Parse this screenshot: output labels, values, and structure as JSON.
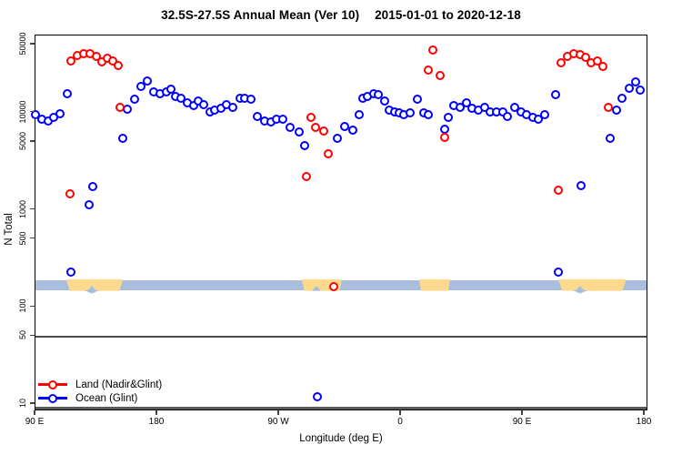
{
  "header": {
    "title_main": "32.5S-27.5S Annual Mean (Ver 10)",
    "title_dates": "2015-01-01 to 2020-12-18"
  },
  "chart_data": {
    "type": "scatter",
    "title": "32.5S-27.5S Annual Mean (Ver 10)   2015-01-01 to 2020-12-18",
    "xlabel": "Longitude (deg E)",
    "ylabel": "N Total",
    "x_axis": {
      "note": "longitude axis runs eastward from 90E through 180, 90W, 0, 90E to 180; stored lon = degrees east of start+90",
      "lon_start": 90,
      "lon_end": 540,
      "ticks": [
        {
          "lon": 90,
          "label": "90 E"
        },
        {
          "lon": 180,
          "label": "180"
        },
        {
          "lon": 270,
          "label": "90 W"
        },
        {
          "lon": 360,
          "label": "0"
        },
        {
          "lon": 450,
          "label": "90 E"
        },
        {
          "lon": 540,
          "label": "180"
        }
      ]
    },
    "y_axis": {
      "scale": "log",
      "ylim": [
        8.4,
        62000
      ],
      "ticks": [
        50000,
        10000,
        5000,
        1000,
        500,
        100,
        50,
        10
      ],
      "tick_labels": [
        "50000",
        "10000",
        "5000",
        "1000",
        "500",
        "100",
        "50",
        "10"
      ]
    },
    "reference_line_y": 50,
    "band": {
      "v_top": 190,
      "v_bottom": 148,
      "ocean_color": "#a9bedc",
      "land_color": "#fcd98c",
      "land_segments_lon": [
        [
          112.8,
          154.5
        ],
        [
          286.8,
          316.3
        ],
        [
          373.4,
          396.2
        ],
        [
          476.1,
          526.5
        ]
      ],
      "notches_lon": [
        131.6,
        297.5,
        492.3
      ],
      "bumps_lon": [
        131.6,
        492.3
      ]
    },
    "legend": {
      "position": "bottom-left"
    },
    "series": [
      {
        "name": "Land (Nadir&Glint)",
        "color": "#ff0000",
        "points": [
          [
            115.5,
            1460
          ],
          [
            116.2,
            34000
          ],
          [
            120.9,
            38800
          ],
          [
            125.6,
            40800
          ],
          [
            130.3,
            40300
          ],
          [
            135.0,
            37900
          ],
          [
            139.0,
            33400
          ],
          [
            143.0,
            36000
          ],
          [
            147.1,
            34200
          ],
          [
            151.1,
            30400
          ],
          [
            152.5,
            11400
          ],
          [
            290.1,
            2180
          ],
          [
            293.5,
            8900
          ],
          [
            296.8,
            7100
          ],
          [
            302.9,
            6500
          ],
          [
            306.2,
            3740
          ],
          [
            310.3,
            160
          ],
          [
            380.1,
            27400
          ],
          [
            383.5,
            44000
          ],
          [
            388.8,
            24100
          ],
          [
            392.2,
            5600
          ],
          [
            476.1,
            1590
          ],
          [
            478.2,
            32800
          ],
          [
            482.9,
            37900
          ],
          [
            487.6,
            40300
          ],
          [
            492.3,
            39700
          ],
          [
            496.3,
            37300
          ],
          [
            500.3,
            32400
          ],
          [
            505.0,
            34200
          ],
          [
            509.0,
            29900
          ],
          [
            513.1,
            11400
          ]
        ]
      },
      {
        "name": "Ocean (Glint)",
        "color": "#0000ff",
        "points": [
          [
            90.0,
            9500
          ],
          [
            94.7,
            8600
          ],
          [
            99.4,
            8200
          ],
          [
            103.4,
            9000
          ],
          [
            108.1,
            9700
          ],
          [
            113.5,
            15700
          ],
          [
            116.2,
            228
          ],
          [
            129.6,
            1130
          ],
          [
            132.3,
            1750
          ],
          [
            154.5,
            5400
          ],
          [
            157.8,
            10900
          ],
          [
            163.2,
            13800
          ],
          [
            167.9,
            18700
          ],
          [
            172.6,
            21000
          ],
          [
            177.3,
            16500
          ],
          [
            182.0,
            15700
          ],
          [
            186.7,
            16500
          ],
          [
            190.1,
            17600
          ],
          [
            193.4,
            14700
          ],
          [
            197.5,
            14000
          ],
          [
            202.2,
            12500
          ],
          [
            206.9,
            11700
          ],
          [
            210.2,
            13100
          ],
          [
            214.2,
            12200
          ],
          [
            219.0,
            10100
          ],
          [
            222.3,
            10600
          ],
          [
            227.0,
            11100
          ],
          [
            231.0,
            12200
          ],
          [
            235.7,
            11300
          ],
          [
            241.1,
            14000
          ],
          [
            244.5,
            14000
          ],
          [
            249.2,
            13700
          ],
          [
            253.9,
            9200
          ],
          [
            259.2,
            8200
          ],
          [
            263.9,
            8100
          ],
          [
            268.0,
            8600
          ],
          [
            272.7,
            8600
          ],
          [
            278.0,
            7000
          ],
          [
            284.7,
            6300
          ],
          [
            288.8,
            4600
          ],
          [
            298.2,
            12
          ],
          [
            313.0,
            5400
          ],
          [
            318.3,
            7200
          ],
          [
            324.4,
            6600
          ],
          [
            329.1,
            9500
          ],
          [
            331.8,
            14000
          ],
          [
            335.1,
            14600
          ],
          [
            339.8,
            15700
          ],
          [
            343.2,
            15300
          ],
          [
            347.9,
            13100
          ],
          [
            351.2,
            10600
          ],
          [
            355.3,
            10100
          ],
          [
            358.6,
            9900
          ],
          [
            362.0,
            9500
          ],
          [
            366.7,
            9900
          ],
          [
            372.0,
            13700
          ],
          [
            376.7,
            9900
          ],
          [
            380.1,
            9500
          ],
          [
            392.2,
            6700
          ],
          [
            394.9,
            9000
          ],
          [
            398.9,
            11700
          ],
          [
            403.6,
            11300
          ],
          [
            408.3,
            12500
          ],
          [
            412.3,
            11100
          ],
          [
            417.0,
            10600
          ],
          [
            421.7,
            11300
          ],
          [
            425.7,
            10100
          ],
          [
            430.4,
            10100
          ],
          [
            435.1,
            10100
          ],
          [
            438.5,
            9200
          ],
          [
            443.9,
            11300
          ],
          [
            448.6,
            10100
          ],
          [
            452.6,
            9500
          ],
          [
            457.3,
            9000
          ],
          [
            461.3,
            8600
          ],
          [
            466.0,
            9500
          ],
          [
            474.1,
            15300
          ],
          [
            476.1,
            228
          ],
          [
            492.9,
            1780
          ],
          [
            514.4,
            5400
          ],
          [
            519.1,
            10600
          ],
          [
            523.1,
            14100
          ],
          [
            528.5,
            17700
          ],
          [
            533.2,
            20600
          ],
          [
            536.5,
            17100
          ]
        ]
      }
    ]
  }
}
